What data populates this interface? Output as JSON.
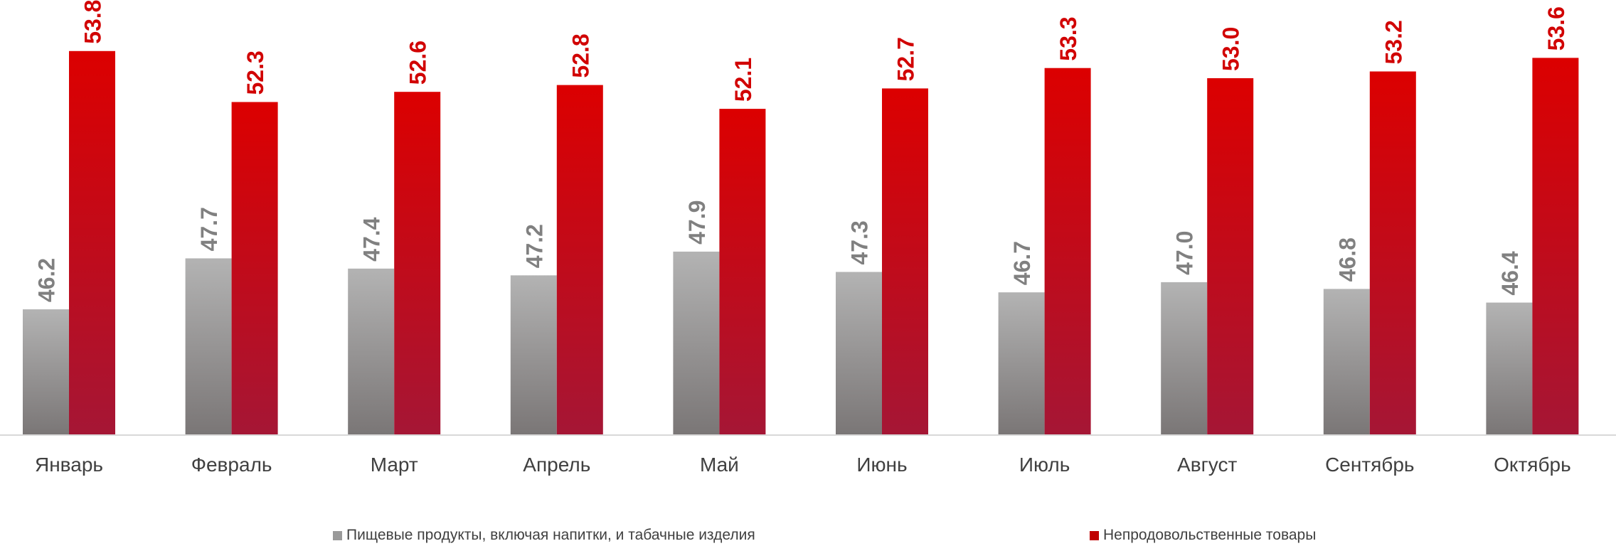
{
  "chart_data": {
    "type": "bar",
    "categories": [
      "Январь",
      "Февраль",
      "Март",
      "Апрель",
      "Май",
      "Июнь",
      "Июль",
      "Август",
      "Сентябрь",
      "Октябрь"
    ],
    "series": [
      {
        "name": "Пищевые продукты, включая напитки, и табачные изделия",
        "color": "#9a9a9a",
        "values": [
          46.2,
          47.7,
          47.4,
          47.2,
          47.9,
          47.3,
          46.7,
          47.0,
          46.8,
          46.4
        ],
        "labels": [
          "46.2",
          "47.7",
          "47.4",
          "47.2",
          "47.9",
          "47.3",
          "46.7",
          "47.0",
          "46.8",
          "46.4"
        ]
      },
      {
        "name": "Непродовольственные товары",
        "color": "#c00000",
        "values": [
          53.8,
          52.3,
          52.6,
          52.8,
          52.1,
          52.7,
          53.3,
          53.0,
          53.2,
          53.6
        ],
        "labels": [
          "53.8",
          "52.3",
          "52.6",
          "52.8",
          "52.1",
          "52.7",
          "53.3",
          "53.0",
          "53.2",
          "53.6"
        ]
      }
    ],
    "ylim": [
      42.5,
      54.8
    ],
    "grid": false,
    "legend_position": "bottom"
  }
}
